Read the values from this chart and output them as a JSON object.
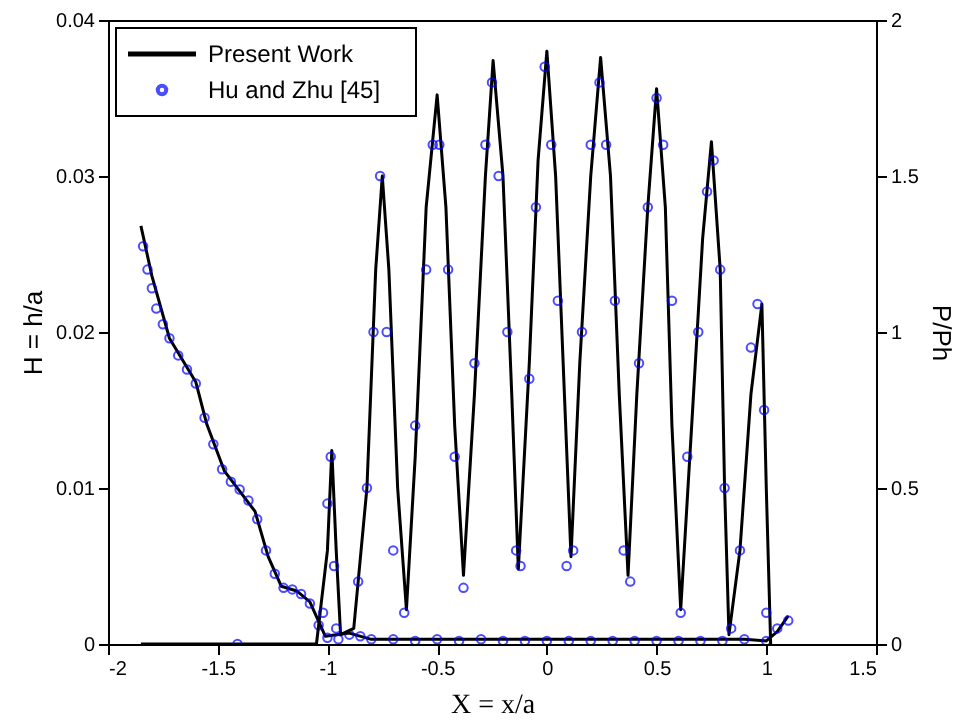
{
  "chart_data": {
    "type": "line",
    "xlabel": "X = x/a",
    "ylabel": "H = h/a",
    "y2label": "P/Ph",
    "xlim": [
      -2,
      1.5
    ],
    "xticks": [
      -2,
      -1.5,
      -1,
      -0.5,
      0,
      0.5,
      1,
      1.5
    ],
    "ylim": [
      0,
      0.04
    ],
    "yticks": [
      0,
      0.01,
      0.02,
      0.03,
      0.04
    ],
    "y2lim": [
      0,
      2
    ],
    "y2ticks": [
      0,
      0.5,
      1,
      1.5,
      2
    ],
    "grid": false,
    "legend": "top left",
    "series": [
      {
        "name": "Present Work",
        "marker": "none",
        "line_style": "solid",
        "color": "#000000",
        "x": [
          -1.85,
          -1.8,
          -1.72,
          -1.6,
          -1.55,
          -1.47,
          -1.4,
          -1.33,
          -1.27,
          -1.21,
          -1.14,
          -1.08,
          -1.01,
          -0.9,
          -0.8,
          0.9,
          1.0,
          1.05,
          1.1
        ],
        "values": [
          0.0268,
          0.0236,
          0.0196,
          0.0168,
          0.0141,
          0.0111,
          0.0098,
          0.0085,
          0.0056,
          0.0037,
          0.0034,
          0.0027,
          0.0005,
          0.0007,
          0.0003,
          0.0003,
          0.0002,
          0.0008,
          0.0018
        ]
      },
      {
        "marker": "none",
        "line_style": "solid",
        "axis": "y2",
        "color": "#000000",
        "x": [
          -1.85,
          -1.05,
          -1.0,
          -0.98,
          -0.96,
          -0.94,
          -0.88,
          -0.82,
          -0.78,
          -0.75,
          -0.72,
          -0.68,
          -0.64,
          -0.6,
          -0.55,
          -0.5,
          -0.46,
          -0.42,
          -0.38,
          -0.33,
          -0.28,
          -0.245,
          -0.2,
          -0.16,
          -0.13,
          -0.08,
          -0.04,
          0,
          0.04,
          0.08,
          0.11,
          0.15,
          0.2,
          0.245,
          0.29,
          0.33,
          0.37,
          0.41,
          0.46,
          0.5,
          0.54,
          0.57,
          0.61,
          0.66,
          0.71,
          0.75,
          0.79,
          0.81,
          0.83,
          0.88,
          0.93,
          0.98,
          1.0,
          1.02
        ],
        "values": [
          0,
          0,
          0.3,
          0.62,
          0.3,
          0.03,
          0.05,
          0.5,
          1.2,
          1.5,
          1.2,
          0.5,
          0.11,
          0.6,
          1.4,
          1.76,
          1.4,
          0.7,
          0.22,
          0.8,
          1.5,
          1.87,
          1.5,
          0.8,
          0.24,
          0.9,
          1.55,
          1.9,
          1.5,
          0.8,
          0.28,
          0.9,
          1.5,
          1.88,
          1.5,
          0.8,
          0.22,
          0.8,
          1.4,
          1.78,
          1.4,
          0.7,
          0.11,
          0.7,
          1.3,
          1.61,
          1.2,
          0.5,
          0.03,
          0.3,
          0.8,
          1.09,
          0.5,
          0
        ]
      },
      {
        "name": "Hu and Zhu [45]",
        "type": "scatter",
        "marker": "circle",
        "color": "#0000ff",
        "x": [
          -1.84,
          -1.82,
          -1.8,
          -1.78,
          -1.75,
          -1.72,
          -1.68,
          -1.64,
          -1.6,
          -1.56,
          -1.52,
          -1.48,
          -1.44,
          -1.4,
          -1.36,
          -1.32,
          -1.28,
          -1.24,
          -1.2,
          -1.16,
          -1.12,
          -1.08,
          -1.04,
          -1.0,
          -0.95,
          -0.9,
          -0.85,
          -0.8,
          -0.7,
          -0.6,
          -0.5,
          -0.4,
          -0.3,
          -0.2,
          -0.1,
          0,
          0.1,
          0.2,
          0.3,
          0.4,
          0.5,
          0.6,
          0.7,
          0.8,
          0.9,
          1.0,
          1.05,
          1.1
        ],
        "values": [
          0.0255,
          0.024,
          0.0228,
          0.0215,
          0.0205,
          0.0196,
          0.0185,
          0.0176,
          0.0167,
          0.0145,
          0.0128,
          0.0112,
          0.0104,
          0.0099,
          0.0092,
          0.008,
          0.006,
          0.0045,
          0.0036,
          0.0035,
          0.0032,
          0.0026,
          0.0012,
          0.0004,
          0.0003,
          0.0006,
          0.0005,
          0.0003,
          0.0003,
          0.0002,
          0.0003,
          0.0002,
          0.0003,
          0.0002,
          0.0002,
          0.0002,
          0.0002,
          0.0002,
          0.0002,
          0.0002,
          0.0002,
          0.0002,
          0.0002,
          0.0002,
          0.0003,
          0.0002,
          0.001,
          0.0015
        ]
      },
      {
        "type": "scatter",
        "marker": "circle",
        "axis": "y2",
        "color": "#0000ff",
        "x": [
          -1.41,
          -1.02,
          -1.0,
          -0.985,
          -0.97,
          -0.96,
          -0.86,
          -0.82,
          -0.79,
          -0.76,
          -0.73,
          -0.7,
          -0.65,
          -0.6,
          -0.55,
          -0.52,
          -0.49,
          -0.45,
          -0.42,
          -0.38,
          -0.33,
          -0.28,
          -0.25,
          -0.22,
          -0.18,
          -0.14,
          -0.12,
          -0.08,
          -0.05,
          -0.01,
          0.02,
          0.05,
          0.09,
          0.12,
          0.16,
          0.2,
          0.24,
          0.27,
          0.31,
          0.35,
          0.38,
          0.42,
          0.46,
          0.5,
          0.53,
          0.57,
          0.61,
          0.64,
          0.69,
          0.73,
          0.76,
          0.79,
          0.81,
          0.84,
          0.88,
          0.93,
          0.96,
          0.99,
          1.0
        ],
        "values": [
          0,
          0.1,
          0.45,
          0.6,
          0.25,
          0.05,
          0.2,
          0.5,
          1.0,
          1.5,
          1.0,
          0.3,
          0.1,
          0.7,
          1.2,
          1.6,
          1.6,
          1.2,
          0.6,
          0.18,
          0.9,
          1.6,
          1.8,
          1.5,
          1.0,
          0.3,
          0.25,
          0.85,
          1.4,
          1.85,
          1.6,
          1.1,
          0.25,
          0.3,
          1.0,
          1.6,
          1.8,
          1.6,
          1.1,
          0.3,
          0.2,
          0.9,
          1.4,
          1.75,
          1.6,
          1.1,
          0.1,
          0.6,
          1.0,
          1.45,
          1.55,
          1.2,
          0.5,
          0.05,
          0.3,
          0.95,
          1.09,
          0.75,
          0.1
        ]
      }
    ]
  }
}
